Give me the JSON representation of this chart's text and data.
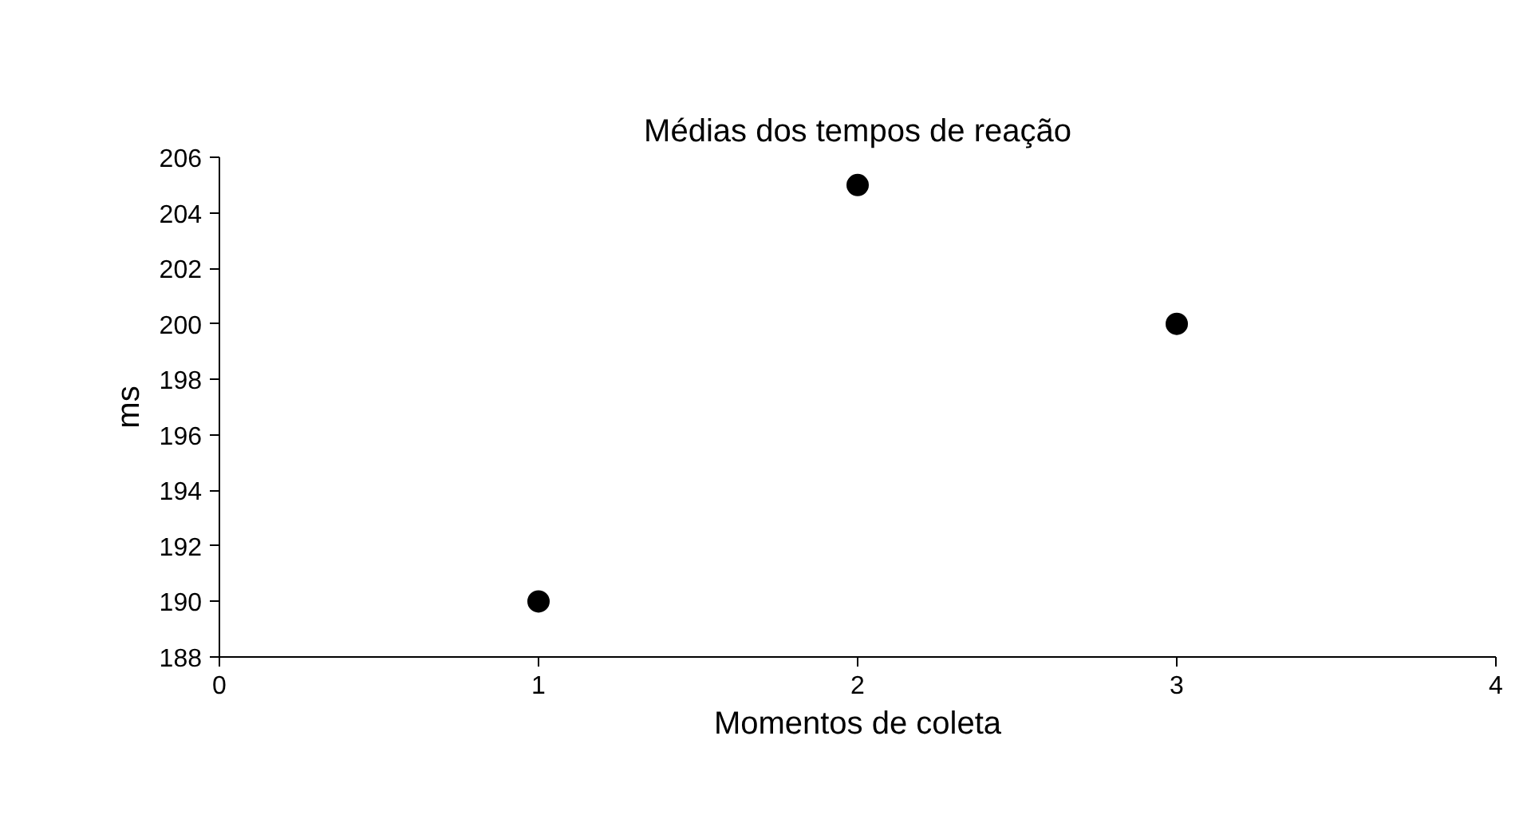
{
  "chart_data": {
    "type": "scatter",
    "title": "Médias dos tempos de reação",
    "xlabel": "Momentos de coleta",
    "ylabel": "ms",
    "x": [
      1,
      2,
      3
    ],
    "series": [
      {
        "color": "#000000",
        "values": [
          190,
          205,
          200
        ]
      }
    ],
    "xlim": [
      0,
      4
    ],
    "xticks": [
      0,
      1,
      2,
      3,
      4
    ],
    "ylim": [
      188,
      206
    ],
    "yticks": [
      188,
      190,
      192,
      194,
      196,
      198,
      200,
      202,
      204,
      206
    ],
    "grid": false,
    "marker": "circle"
  }
}
